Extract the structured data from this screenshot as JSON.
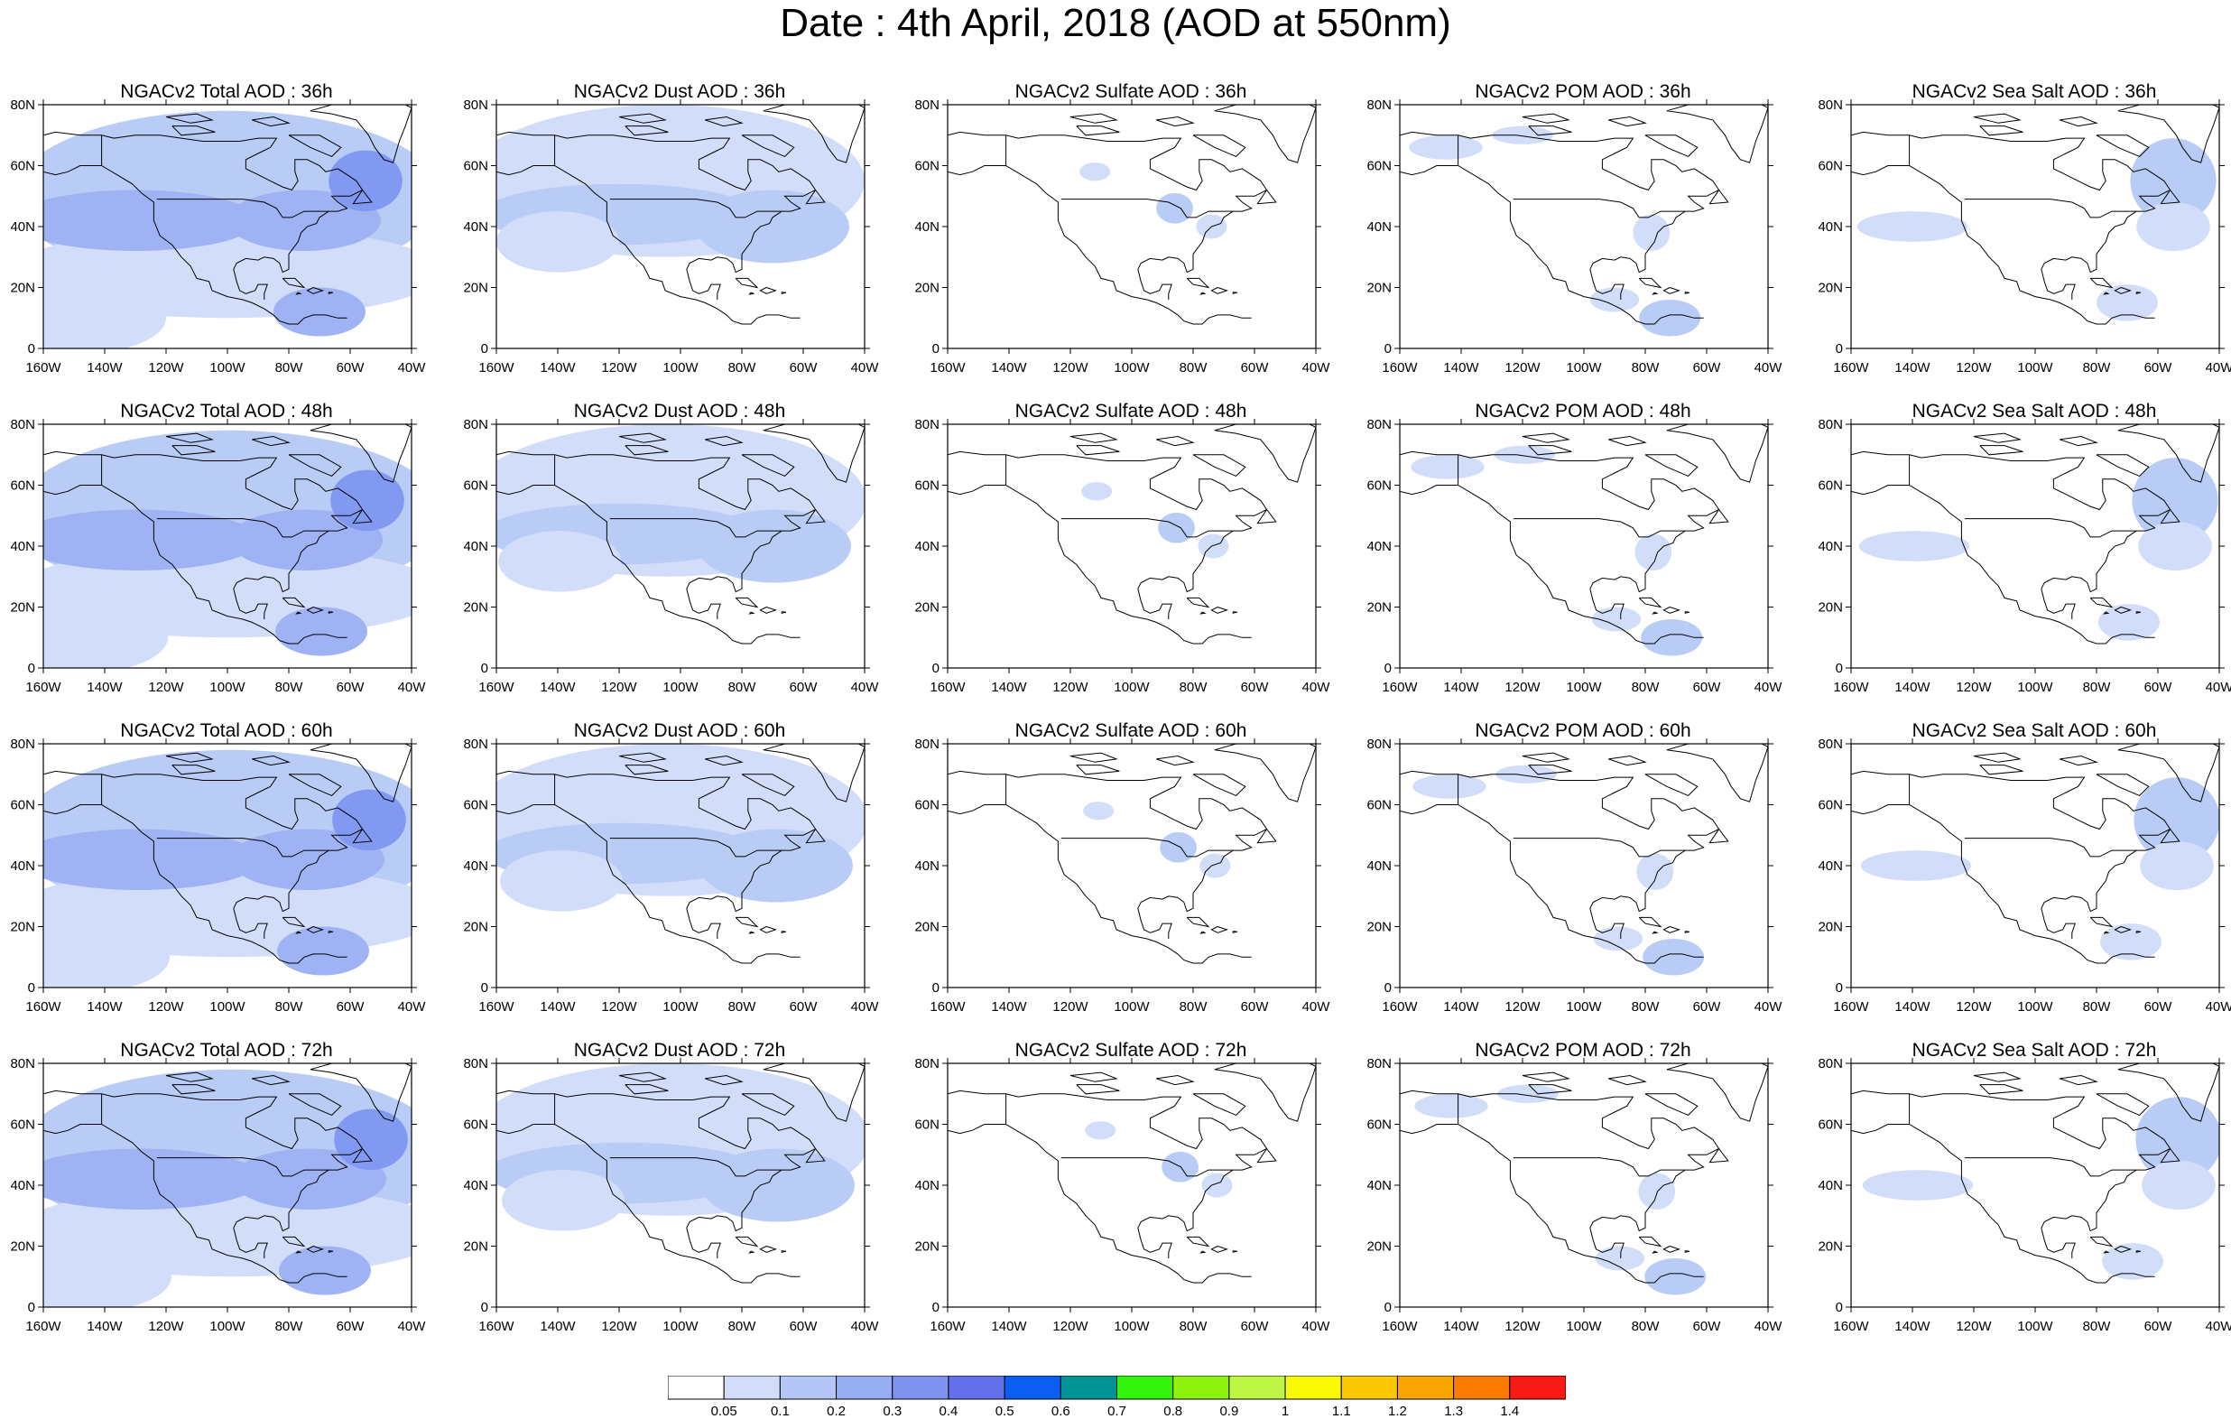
{
  "title": "Date : 4th April, 2018 (AOD at 550nm)",
  "axis": {
    "lat_ticks": [
      "0",
      "20N",
      "40N",
      "60N",
      "80N"
    ],
    "lon_ticks": [
      "160W",
      "140W",
      "120W",
      "100W",
      "80W",
      "60W",
      "40W"
    ]
  },
  "colors": {
    "coastline": "#000000",
    "lightest": "#d2def9",
    "light": "#b8ccf6",
    "medium": "#9fb3f4",
    "strong": "#8199f0"
  },
  "colorbar": {
    "colors": [
      "#ffffff",
      "#d2def9",
      "#b4c6f6",
      "#98aef3",
      "#7f92f0",
      "#6570ec",
      "#0a5ff1",
      "#009393",
      "#35f40c",
      "#8df20e",
      "#bef646",
      "#f9f900",
      "#f9c800",
      "#f9a500",
      "#f97b00",
      "#f91a16"
    ],
    "labels": [
      "0.05",
      "0.1",
      "0.2",
      "0.3",
      "0.4",
      "0.5",
      "0.6",
      "0.7",
      "0.8",
      "0.9",
      "1",
      "1.1",
      "1.2",
      "1.3",
      "1.4"
    ]
  },
  "panels": [
    {
      "title": "NGACv2 Total AOD : 36h",
      "species": "total",
      "hour": 36
    },
    {
      "title": "NGACv2 Dust AOD : 36h",
      "species": "dust",
      "hour": 36
    },
    {
      "title": "NGACv2 Sulfate AOD : 36h",
      "species": "sulfate",
      "hour": 36
    },
    {
      "title": "NGACv2 POM AOD : 36h",
      "species": "pom",
      "hour": 36
    },
    {
      "title": "NGACv2 Sea Salt AOD : 36h",
      "species": "seasalt",
      "hour": 36
    },
    {
      "title": "NGACv2 Total AOD : 48h",
      "species": "total",
      "hour": 48
    },
    {
      "title": "NGACv2 Dust AOD : 48h",
      "species": "dust",
      "hour": 48
    },
    {
      "title": "NGACv2 Sulfate AOD : 48h",
      "species": "sulfate",
      "hour": 48
    },
    {
      "title": "NGACv2 POM AOD : 48h",
      "species": "pom",
      "hour": 48
    },
    {
      "title": "NGACv2 Sea Salt AOD : 48h",
      "species": "seasalt",
      "hour": 48
    },
    {
      "title": "NGACv2 Total AOD : 60h",
      "species": "total",
      "hour": 60
    },
    {
      "title": "NGACv2 Dust AOD : 60h",
      "species": "dust",
      "hour": 60
    },
    {
      "title": "NGACv2 Sulfate AOD : 60h",
      "species": "sulfate",
      "hour": 60
    },
    {
      "title": "NGACv2 POM AOD : 60h",
      "species": "pom",
      "hour": 60
    },
    {
      "title": "NGACv2 Sea Salt AOD : 60h",
      "species": "seasalt",
      "hour": 60
    },
    {
      "title": "NGACv2 Total AOD : 72h",
      "species": "total",
      "hour": 72
    },
    {
      "title": "NGACv2 Dust AOD : 72h",
      "species": "dust",
      "hour": 72
    },
    {
      "title": "NGACv2 Sulfate AOD : 72h",
      "species": "sulfate",
      "hour": 72
    },
    {
      "title": "NGACv2 POM AOD : 72h",
      "species": "pom",
      "hour": 72
    },
    {
      "title": "NGACv2 Sea Salt  AOD : 72h",
      "species": "seasalt",
      "hour": 72
    }
  ]
}
